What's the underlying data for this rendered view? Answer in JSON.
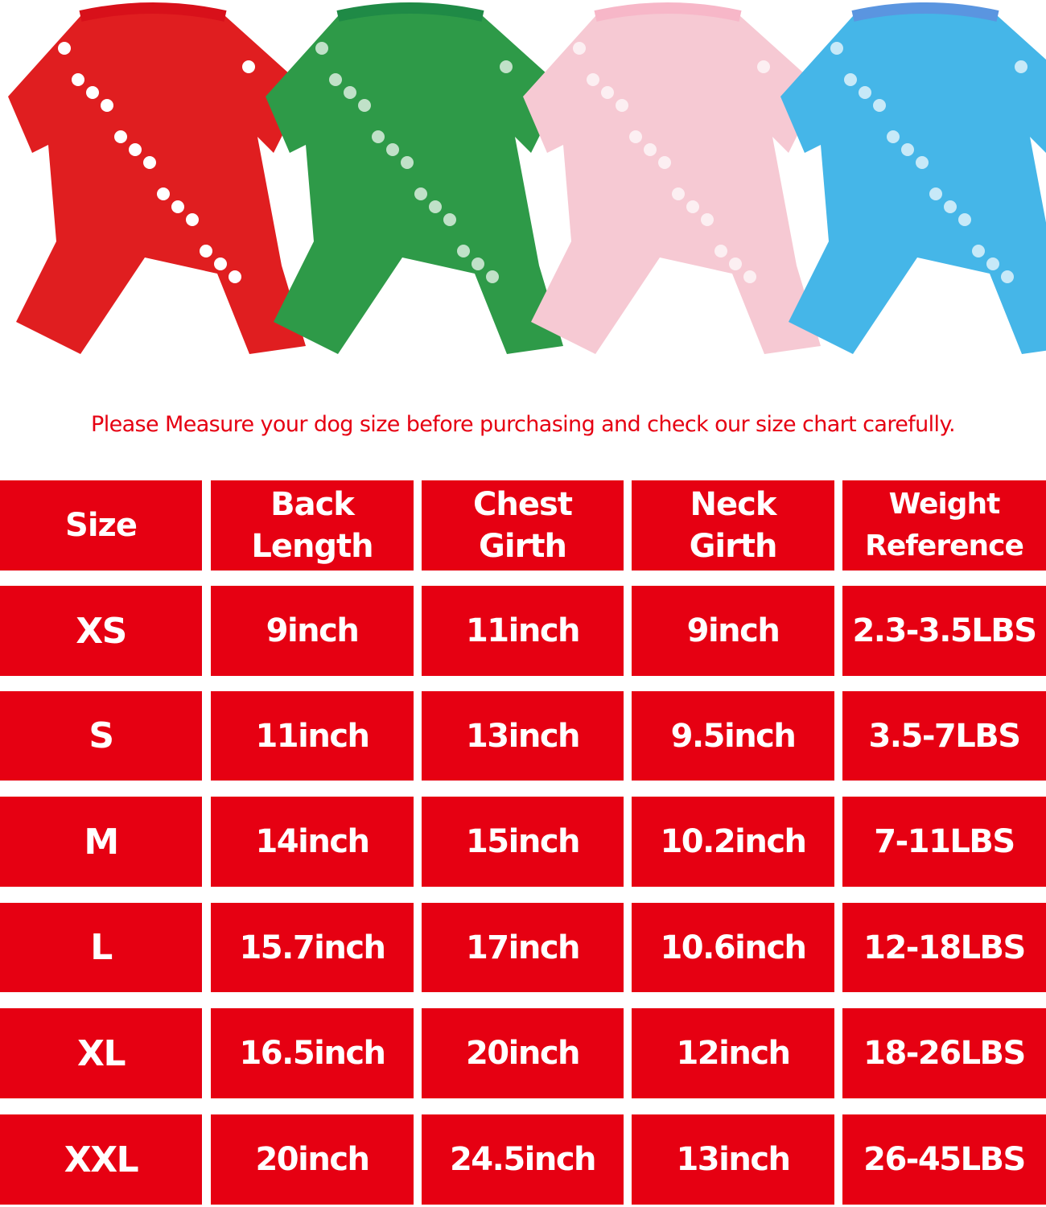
{
  "product_photo": {
    "alt": "Four dog Christmas pajamas",
    "colors": [
      "#e01e20",
      "#2e9a48",
      "#f6c9d3",
      "#45b6e8"
    ]
  },
  "notice": "Please Measure your dog size before purchasing and check our size chart carefully.",
  "accent_color": "#e60012",
  "size_chart": {
    "headers": [
      [
        "Size"
      ],
      [
        "Back",
        "Length"
      ],
      [
        "Chest",
        "Girth"
      ],
      [
        "Neck",
        "Girth"
      ],
      [
        "Weight",
        "Reference"
      ]
    ],
    "rows": [
      [
        "XS",
        "9inch",
        "11inch",
        "9inch",
        "2.3-3.5LBS"
      ],
      [
        "S",
        "11inch",
        "13inch",
        "9.5inch",
        "3.5-7LBS"
      ],
      [
        "M",
        "14inch",
        "15inch",
        "10.2inch",
        "7-11LBS"
      ],
      [
        "L",
        "15.7inch",
        "17inch",
        "10.6inch",
        "12-18LBS"
      ],
      [
        "XL",
        "16.5inch",
        "20inch",
        "12inch",
        "18-26LBS"
      ],
      [
        "XXL",
        "20inch",
        "24.5inch",
        "13inch",
        "26-45LBS"
      ]
    ]
  }
}
